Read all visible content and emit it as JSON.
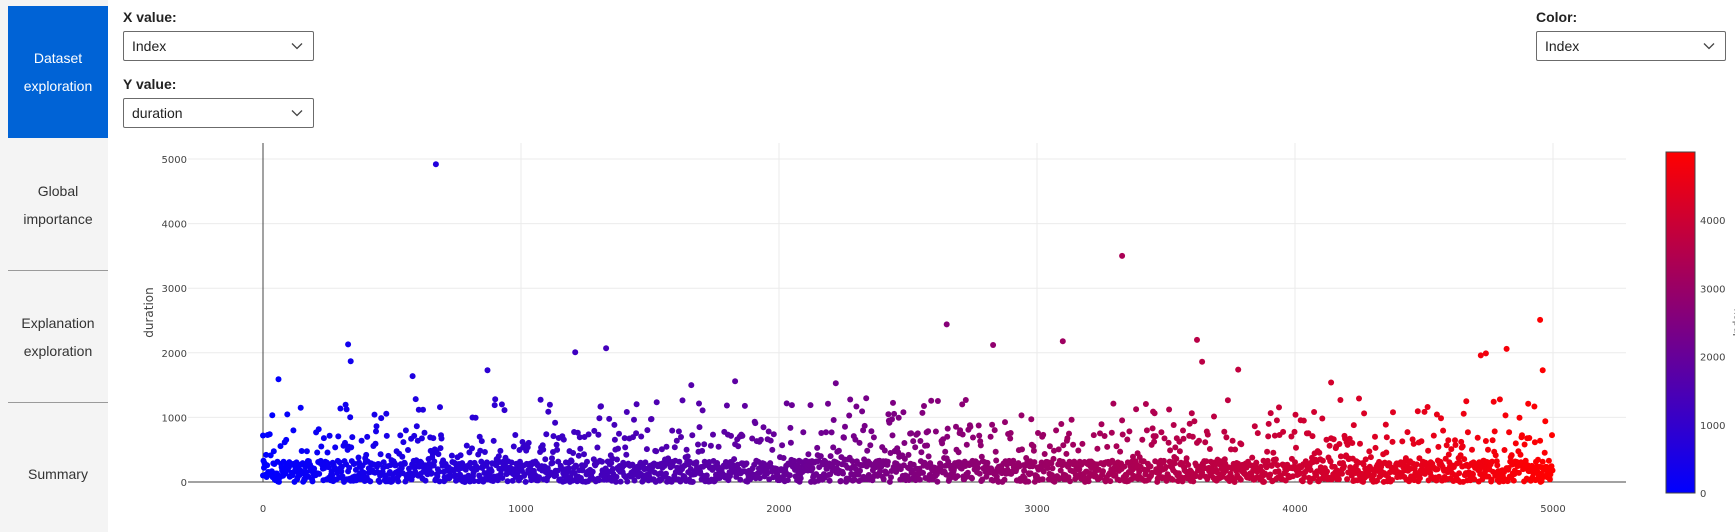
{
  "sidebar": {
    "items": [
      {
        "line1": "Dataset",
        "line2": "exploration",
        "active": true
      },
      {
        "line1": "Global",
        "line2": "importance",
        "active": false
      },
      {
        "line1": "Explanation",
        "line2": "exploration",
        "active": false
      },
      {
        "line1": "Summary",
        "line2": "",
        "active": false
      }
    ]
  },
  "controls": {
    "x_label": "X value:",
    "x_value": "Index",
    "y_label": "Y value:",
    "y_value": "duration",
    "color_label": "Color:",
    "color_value": "Index"
  },
  "colors": {
    "accent": "#0063d6",
    "scale_low": "#0000ff",
    "scale_high": "#ff0000"
  },
  "chart_data": {
    "type": "scatter",
    "title": "",
    "xlabel": "",
    "ylabel": "duration",
    "xlim": [
      -300,
      5300
    ],
    "ylim": [
      -70,
      5200
    ],
    "x_ticks": [
      "0",
      "1000",
      "2000",
      "3000",
      "4000",
      "5000"
    ],
    "y_ticks": [
      "0",
      "1000",
      "2000",
      "3000",
      "4000",
      "5000"
    ],
    "grid": true,
    "n_points": 5000,
    "color_by": "Index",
    "colorbar": {
      "title": "Index",
      "min": 0,
      "max": 4999,
      "ticks": [
        "0",
        "1000",
        "2000",
        "3000",
        "4000"
      ]
    },
    "notable_points": [
      {
        "x": 0,
        "y": 720
      },
      {
        "x": 60,
        "y": 1590
      },
      {
        "x": 330,
        "y": 2130
      },
      {
        "x": 340,
        "y": 1870
      },
      {
        "x": 580,
        "y": 1640
      },
      {
        "x": 670,
        "y": 4920
      },
      {
        "x": 870,
        "y": 1730
      },
      {
        "x": 1210,
        "y": 2010
      },
      {
        "x": 1330,
        "y": 2070
      },
      {
        "x": 1660,
        "y": 1500
      },
      {
        "x": 1830,
        "y": 1560
      },
      {
        "x": 2220,
        "y": 1530
      },
      {
        "x": 2650,
        "y": 2440
      },
      {
        "x": 2830,
        "y": 2120
      },
      {
        "x": 3100,
        "y": 2180
      },
      {
        "x": 3330,
        "y": 3500
      },
      {
        "x": 3620,
        "y": 2200
      },
      {
        "x": 3640,
        "y": 1860
      },
      {
        "x": 3780,
        "y": 1740
      },
      {
        "x": 4140,
        "y": 1540
      },
      {
        "x": 4720,
        "y": 1960
      },
      {
        "x": 4740,
        "y": 1990
      },
      {
        "x": 4820,
        "y": 2060
      },
      {
        "x": 4950,
        "y": 2510
      },
      {
        "x": 4960,
        "y": 1730
      }
    ],
    "bulk_distribution": {
      "median": 180,
      "typical_max": 700
    }
  }
}
